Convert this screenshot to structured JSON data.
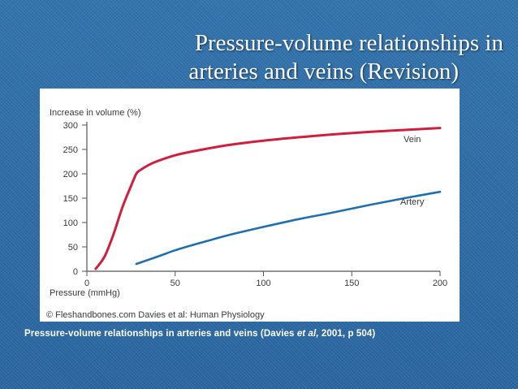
{
  "slide": {
    "title_line1": "Pressure-volume relationships in",
    "title_line2": "arteries and veins (Revision)",
    "caption_pre": "Pressure-volume relationships in arteries and veins (Davies ",
    "caption_italic": "et al,",
    "caption_post": " 2001, p 504)",
    "colors": {
      "background": "#2e6da4",
      "vein": "#d01f3c",
      "artery": "#1f6fae"
    }
  },
  "figure": {
    "copyright": "© Fleshandbones.com Davies et al: Human Physiology"
  },
  "chart_data": {
    "type": "line",
    "title": "",
    "xlabel": "Pressure (mmHg)",
    "ylabel": "Increase in volume (%)",
    "xlim": [
      0,
      200
    ],
    "ylim": [
      0,
      300
    ],
    "x_ticks": [
      0,
      50,
      100,
      150,
      200
    ],
    "y_ticks": [
      0,
      50,
      100,
      150,
      200,
      250,
      300
    ],
    "grid": false,
    "series": [
      {
        "name": "Vein",
        "color": "#d01f3c",
        "x": [
          5,
          10,
          15,
          20,
          25,
          28,
          30,
          35,
          40,
          50,
          60,
          80,
          100,
          120,
          140,
          160,
          180,
          200
        ],
        "y": [
          5,
          30,
          75,
          130,
          175,
          200,
          207,
          218,
          226,
          238,
          246,
          259,
          268,
          275,
          281,
          286,
          290,
          294
        ]
      },
      {
        "name": "Artery",
        "color": "#1f6fae",
        "x": [
          28,
          40,
          50,
          60,
          70,
          80,
          100,
          120,
          140,
          160,
          180,
          200
        ],
        "y": [
          15,
          30,
          43,
          54,
          64,
          74,
          91,
          107,
          121,
          136,
          150,
          163
        ]
      }
    ]
  }
}
